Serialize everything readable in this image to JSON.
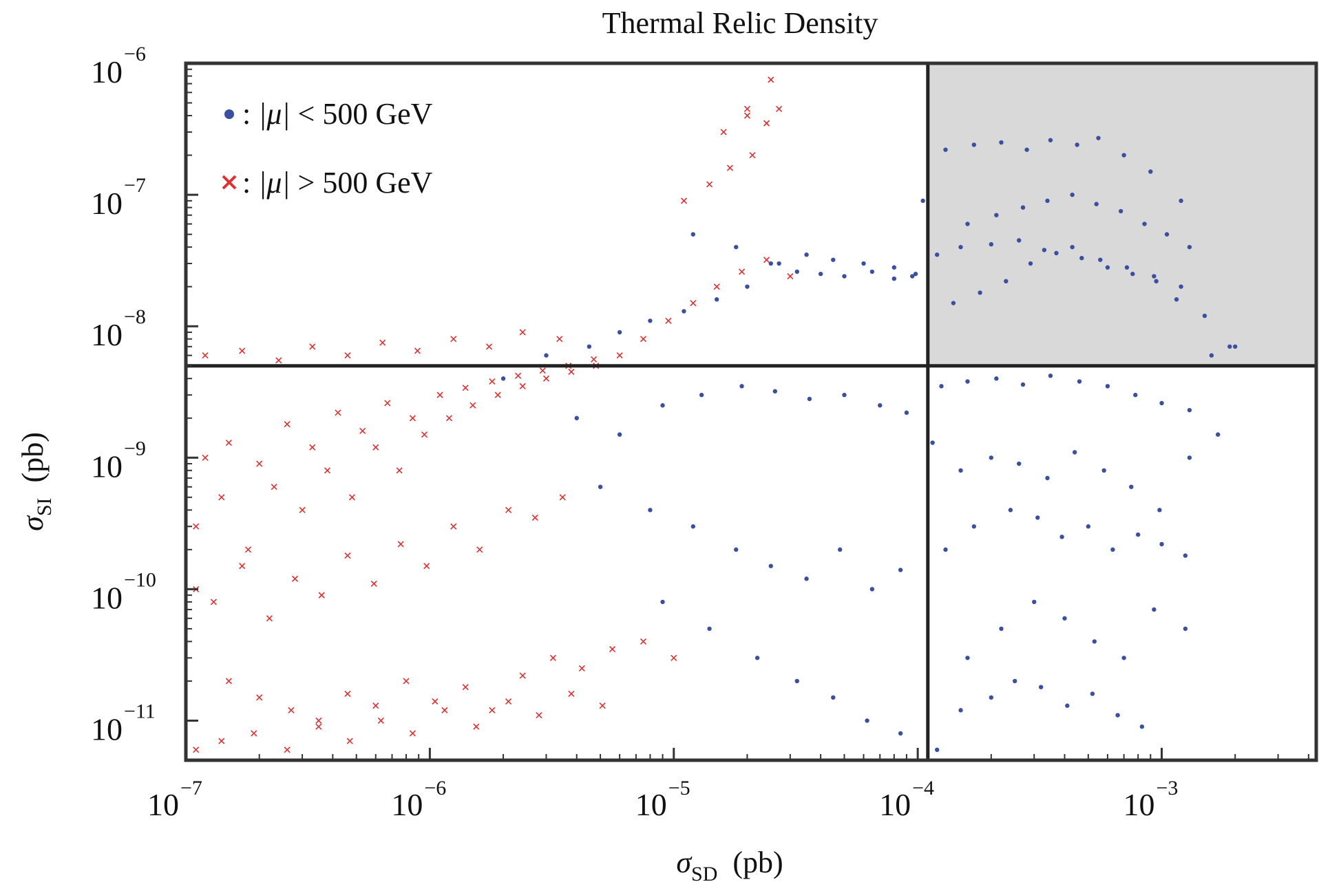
{
  "chart_data": {
    "type": "scatter",
    "title": "Thermal Relic Density",
    "xlabel": {
      "symbol": "σ",
      "subscript": "SD",
      "unit": "(pb)"
    },
    "ylabel": {
      "symbol": "σ",
      "subscript": "SI",
      "unit": "(pb)"
    },
    "x_scale": "log",
    "y_scale": "log",
    "xlim": [
      1e-07,
      0.0043
    ],
    "ylim": [
      5e-12,
      1e-06
    ],
    "x_ticks": [
      {
        "value": 1e-07,
        "base": "10",
        "exp": "−7"
      },
      {
        "value": 1e-06,
        "base": "10",
        "exp": "−6"
      },
      {
        "value": 1e-05,
        "base": "10",
        "exp": "−5"
      },
      {
        "value": 0.0001,
        "base": "10",
        "exp": "−4"
      },
      {
        "value": 0.001,
        "base": "10",
        "exp": "−3"
      }
    ],
    "y_ticks": [
      {
        "value": 1e-06,
        "base": "10",
        "exp": "−6"
      },
      {
        "value": 1e-07,
        "base": "10",
        "exp": "−7"
      },
      {
        "value": 1e-08,
        "base": "10",
        "exp": "−8"
      },
      {
        "value": 1e-09,
        "base": "10",
        "exp": "−9"
      },
      {
        "value": 1e-10,
        "base": "10",
        "exp": "−10"
      },
      {
        "value": 1e-11,
        "base": "10",
        "exp": "−11"
      }
    ],
    "grid": false,
    "legend_position": "top-left",
    "cut_lines": {
      "x": 0.00011,
      "y": 5e-09
    },
    "excluded_region": {
      "x_min": 0.00011,
      "y_min": 5e-09,
      "color": "#d9d9d9"
    },
    "series": [
      {
        "name": "|μ| < 500 GeV",
        "legend": {
          "symbol": ": ",
          "var": "|μ|",
          "text": " < 500 GeV"
        },
        "marker": "dot",
        "color": "#3b4fa0",
        "x": [
          1.2e-05,
          1.8e-05,
          2.5e-05,
          3.2e-05,
          4e-05,
          5e-05,
          6.5e-05,
          8e-05,
          9.5e-05,
          0.000105,
          0.00013,
          0.00017,
          0.00022,
          0.00028,
          0.00035,
          0.00045,
          0.00055,
          0.0007,
          0.0009,
          0.0012,
          0.0016,
          0.002,
          2e-06,
          3e-06,
          4.5e-06,
          6e-06,
          8e-06,
          1.1e-05,
          1.5e-05,
          2e-05,
          2.7e-05,
          3.5e-05,
          4.5e-05,
          6e-05,
          8e-05,
          9.8e-05,
          0.00012,
          0.00015,
          0.0002,
          0.00026,
          0.00033,
          0.00043,
          0.00056,
          0.00072,
          0.00093,
          0.0012,
          0.0015,
          0.0019,
          4e-06,
          6e-06,
          9e-06,
          1.3e-05,
          1.9e-05,
          2.6e-05,
          3.6e-05,
          5e-05,
          7e-05,
          9e-05,
          0.000125,
          0.00016,
          0.00021,
          0.00027,
          0.00035,
          0.00046,
          0.0006,
          0.00078,
          0.001,
          0.0013,
          0.0017,
          5e-06,
          8e-06,
          1.2e-05,
          1.8e-05,
          2.5e-05,
          3.5e-05,
          4.8e-05,
          6.5e-05,
          8.5e-05,
          0.000115,
          0.00015,
          0.0002,
          0.00026,
          0.00034,
          0.00044,
          0.00058,
          0.00075,
          0.00098,
          0.0013,
          9e-06,
          1.4e-05,
          2.2e-05,
          3.2e-05,
          4.5e-05,
          6.2e-05,
          8.5e-05,
          0.00012,
          0.00016,
          0.00022,
          0.0003,
          0.0004,
          0.00053,
          0.0007,
          0.00093,
          0.00125,
          0.00014,
          0.00018,
          0.00023,
          0.00029,
          0.00037,
          0.00047,
          0.0006,
          0.00076,
          0.00095,
          0.00115,
          0.00016,
          0.00021,
          0.00027,
          0.00034,
          0.00043,
          0.00054,
          0.00068,
          0.00085,
          0.00105,
          0.0013,
          0.00013,
          0.00017,
          0.00024,
          0.00031,
          0.00039,
          0.0005,
          0.00063,
          0.0008,
          0.001,
          0.00125,
          0.00015,
          0.0002,
          0.00025,
          0.00032,
          0.00041,
          0.00052,
          0.00066,
          0.00083
        ],
        "y": [
          5e-08,
          4e-08,
          3e-08,
          2.6e-08,
          2.5e-08,
          2.4e-08,
          2.6e-08,
          2.3e-08,
          2.4e-08,
          9e-08,
          2.2e-07,
          2.4e-07,
          2.5e-07,
          2.2e-07,
          2.6e-07,
          2.4e-07,
          2.7e-07,
          2e-07,
          1.5e-07,
          9e-08,
          6e-09,
          7e-09,
          4e-09,
          6e-09,
          7e-09,
          9e-09,
          1.1e-08,
          1.3e-08,
          1.6e-08,
          2e-08,
          3e-08,
          3.5e-08,
          3.2e-08,
          3e-08,
          2.8e-08,
          2.5e-08,
          3.5e-08,
          4e-08,
          4.2e-08,
          4.5e-08,
          3.8e-08,
          4e-08,
          3.2e-08,
          2.8e-08,
          2.4e-08,
          2e-08,
          1.2e-08,
          7e-09,
          2e-09,
          1.5e-09,
          2.5e-09,
          3e-09,
          3.5e-09,
          3.2e-09,
          2.8e-09,
          3e-09,
          2.5e-09,
          2.2e-09,
          3.5e-09,
          3.8e-09,
          4e-09,
          3.6e-09,
          4.2e-09,
          3.8e-09,
          3.5e-09,
          3e-09,
          2.6e-09,
          2.3e-09,
          1.5e-09,
          6e-10,
          4e-10,
          3e-10,
          2e-10,
          1.5e-10,
          1.2e-10,
          2e-10,
          1e-10,
          1.4e-10,
          1.3e-09,
          8e-10,
          1e-09,
          9e-10,
          7e-10,
          1.1e-09,
          8e-10,
          6e-10,
          4e-10,
          1e-09,
          8e-11,
          5e-11,
          3e-11,
          2e-11,
          1.5e-11,
          1e-11,
          8e-12,
          6e-12,
          3e-11,
          5e-11,
          8e-11,
          6e-11,
          4e-11,
          3e-11,
          7e-11,
          5e-11,
          1.5e-08,
          1.8e-08,
          2.2e-08,
          3e-08,
          3.6e-08,
          3.3e-08,
          2.8e-08,
          2.5e-08,
          2.2e-08,
          1.6e-08,
          6e-08,
          7e-08,
          8e-08,
          9e-08,
          1e-07,
          8.5e-08,
          7.5e-08,
          6e-08,
          5e-08,
          4e-08,
          2e-10,
          3e-10,
          4e-10,
          3.5e-10,
          2.5e-10,
          3e-10,
          2e-10,
          2.6e-10,
          2.2e-10,
          1.8e-10,
          1.2e-11,
          1.5e-11,
          2e-11,
          1.8e-11,
          1.3e-11,
          1.6e-11,
          1.1e-11,
          9e-12
        ]
      },
      {
        "name": "|μ| > 500 GeV",
        "legend": {
          "symbol": ": ",
          "var": "|μ|",
          "text": " > 500 GeV"
        },
        "marker": "x",
        "color": "#e03030",
        "x": [
          1.1e-07,
          1.4e-07,
          1.8e-07,
          2.3e-07,
          3e-07,
          3.8e-07,
          4.8e-07,
          6e-07,
          7.5e-07,
          9.5e-07,
          1.2e-06,
          1.5e-06,
          1.9e-06,
          2.4e-06,
          3e-06,
          3.8e-06,
          4.8e-06,
          6e-06,
          7.5e-06,
          9.5e-06,
          1.2e-05,
          1.5e-05,
          1.9e-05,
          2.4e-05,
          3e-05,
          1.2e-07,
          1.5e-07,
          2e-07,
          2.6e-07,
          3.3e-07,
          4.2e-07,
          5.3e-07,
          6.7e-07,
          8.5e-07,
          1.1e-06,
          1.4e-06,
          1.8e-06,
          2.3e-06,
          2.9e-06,
          3.7e-06,
          4.7e-06,
          1.1e-07,
          1.3e-07,
          1.7e-07,
          2.2e-07,
          2.8e-07,
          3.6e-07,
          4.6e-07,
          5.9e-07,
          7.6e-07,
          9.7e-07,
          1.25e-06,
          1.6e-06,
          2.1e-06,
          2.7e-06,
          3.5e-06,
          1.5e-07,
          2e-07,
          2.7e-07,
          3.5e-07,
          4.6e-07,
          6e-07,
          8e-07,
          1.05e-06,
          1.4e-06,
          1.8e-06,
          2.4e-06,
          3.2e-06,
          4.2e-06,
          5.6e-06,
          7.5e-06,
          1e-05,
          1.6e-05,
          2e-05,
          2.5e-05,
          2e-05,
          2.4e-05,
          2.7e-05,
          1.1e-05,
          1.4e-05,
          1.7e-05,
          2.1e-05,
          1.1e-07,
          1.4e-07,
          1.9e-07,
          2.6e-07,
          3.5e-07,
          4.7e-07,
          6.3e-07,
          8.5e-07,
          1.15e-06,
          1.55e-06,
          2.1e-06,
          2.8e-06,
          3.8e-06,
          5.1e-06,
          1.2e-07,
          1.7e-07,
          2.4e-07,
          3.3e-07,
          4.6e-07,
          6.4e-07,
          8.9e-07,
          1.25e-06,
          1.75e-06,
          2.4e-06,
          3.4e-06
        ],
        "y": [
          3e-10,
          5e-10,
          2e-10,
          6e-10,
          4e-10,
          8e-10,
          5e-10,
          1.2e-09,
          8e-10,
          1.5e-09,
          2e-09,
          2.5e-09,
          3e-09,
          3.5e-09,
          4e-09,
          4.5e-09,
          5e-09,
          6e-09,
          8e-09,
          1.1e-08,
          1.5e-08,
          2e-08,
          2.6e-08,
          3.2e-08,
          2.4e-08,
          1e-09,
          1.3e-09,
          9e-10,
          1.8e-09,
          1.2e-09,
          2.2e-09,
          1.6e-09,
          2.6e-09,
          2e-09,
          3e-09,
          3.4e-09,
          3.8e-09,
          4.2e-09,
          4.6e-09,
          5e-09,
          5.6e-09,
          1e-10,
          8e-11,
          1.5e-10,
          6e-11,
          1.2e-10,
          9e-11,
          1.8e-10,
          1.1e-10,
          2.2e-10,
          1.5e-10,
          3e-10,
          2e-10,
          4e-10,
          3.5e-10,
          5e-10,
          2e-11,
          1.5e-11,
          1.2e-11,
          1e-11,
          1.6e-11,
          1.3e-11,
          2e-11,
          1.4e-11,
          1.8e-11,
          1.2e-11,
          2.2e-11,
          3e-11,
          2.5e-11,
          3.5e-11,
          4e-11,
          3e-11,
          3e-07,
          4e-07,
          7.5e-07,
          4.5e-07,
          3.5e-07,
          4.5e-07,
          9e-08,
          1.2e-07,
          1.6e-07,
          2e-07,
          6e-12,
          7e-12,
          8e-12,
          6e-12,
          9e-12,
          7e-12,
          1e-11,
          8e-12,
          1.2e-11,
          9e-12,
          1.4e-11,
          1.1e-11,
          1.6e-11,
          1.3e-11,
          6e-09,
          6.5e-09,
          5.5e-09,
          7e-09,
          6e-09,
          7.5e-09,
          6.5e-09,
          8e-09,
          7e-09,
          9e-09,
          8e-09
        ]
      }
    ]
  }
}
